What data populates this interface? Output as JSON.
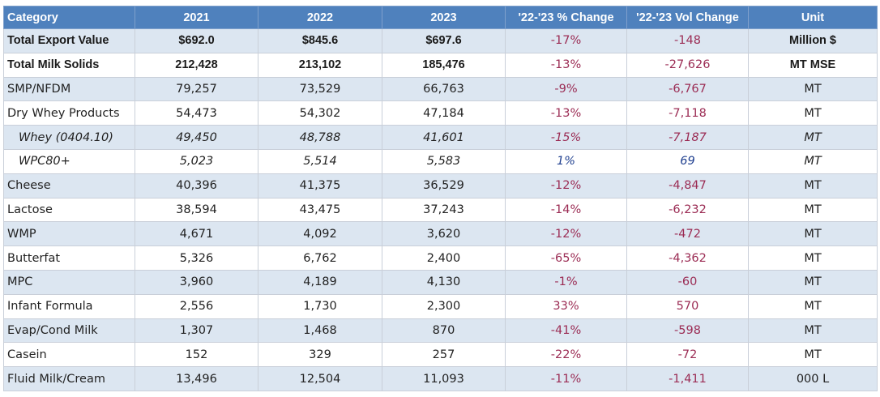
{
  "headers": {
    "category": "Category",
    "y2021": "2021",
    "y2022": "2022",
    "y2023": "2023",
    "pct_change": "'22-'23 % Change",
    "vol_change": "'22-'23 Vol Change",
    "unit": "Unit"
  },
  "rows": [
    {
      "category": "Total Export Value",
      "y2021": "$692.0",
      "y2022": "$845.6",
      "y2023": "$697.6",
      "pct": "-17%",
      "vol": "-148",
      "unit": "Million $",
      "style": "bold"
    },
    {
      "category": "Total Milk Solids",
      "y2021": "212,428",
      "y2022": "213,102",
      "y2023": "185,476",
      "pct": "-13%",
      "vol": "-27,626",
      "unit": "MT MSE",
      "style": "bold"
    },
    {
      "category": "SMP/NFDM",
      "y2021": "79,257",
      "y2022": "73,529",
      "y2023": "66,763",
      "pct": "-9%",
      "vol": "-6,767",
      "unit": "MT",
      "style": "normal"
    },
    {
      "category": "Dry Whey Products",
      "y2021": "54,473",
      "y2022": "54,302",
      "y2023": "47,184",
      "pct": "-13%",
      "vol": "-7,118",
      "unit": "MT",
      "style": "normal"
    },
    {
      "category": "Whey (0404.10)",
      "y2021": "49,450",
      "y2022": "48,788",
      "y2023": "41,601",
      "pct": "-15%",
      "vol": "-7,187",
      "unit": "MT",
      "style": "sub"
    },
    {
      "category": "WPC80+",
      "y2021": "5,023",
      "y2022": "5,514",
      "y2023": "5,583",
      "pct": "1%",
      "vol": "69",
      "unit": "MT",
      "style": "sub"
    },
    {
      "category": "Cheese",
      "y2021": "40,396",
      "y2022": "41,375",
      "y2023": "36,529",
      "pct": "-12%",
      "vol": "-4,847",
      "unit": "MT",
      "style": "normal"
    },
    {
      "category": "Lactose",
      "y2021": "38,594",
      "y2022": "43,475",
      "y2023": "37,243",
      "pct": "-14%",
      "vol": "-6,232",
      "unit": "MT",
      "style": "normal"
    },
    {
      "category": "WMP",
      "y2021": "4,671",
      "y2022": "4,092",
      "y2023": "3,620",
      "pct": "-12%",
      "vol": "-472",
      "unit": "MT",
      "style": "normal"
    },
    {
      "category": "Butterfat",
      "y2021": "5,326",
      "y2022": "6,762",
      "y2023": "2,400",
      "pct": "-65%",
      "vol": "-4,362",
      "unit": "MT",
      "style": "normal"
    },
    {
      "category": "MPC",
      "y2021": "3,960",
      "y2022": "4,189",
      "y2023": "4,130",
      "pct": "-1%",
      "vol": "-60",
      "unit": "MT",
      "style": "normal"
    },
    {
      "category": "Infant Formula",
      "y2021": "2,556",
      "y2022": "1,730",
      "y2023": "2,300",
      "pct": "33%",
      "vol": "570",
      "unit": "MT",
      "style": "normal"
    },
    {
      "category": "Evap/Cond Milk",
      "y2021": "1,307",
      "y2022": "1,468",
      "y2023": "870",
      "pct": "-41%",
      "vol": "-598",
      "unit": "MT",
      "style": "normal"
    },
    {
      "category": "Casein",
      "y2021": "152",
      "y2022": "329",
      "y2023": "257",
      "pct": "-22%",
      "vol": "-72",
      "unit": "MT",
      "style": "normal"
    },
    {
      "category": "Fluid Milk/Cream",
      "y2021": "13,496",
      "y2022": "12,504",
      "y2023": "11,093",
      "pct": "-11%",
      "vol": "-1,411",
      "unit": "000 L",
      "style": "normal"
    }
  ],
  "colors": {
    "header_bg": "#4f81bd",
    "band_bg": "#dce6f1",
    "negative_text": "#9b2c54",
    "positive_wpc_text": "#1f3f8f"
  }
}
